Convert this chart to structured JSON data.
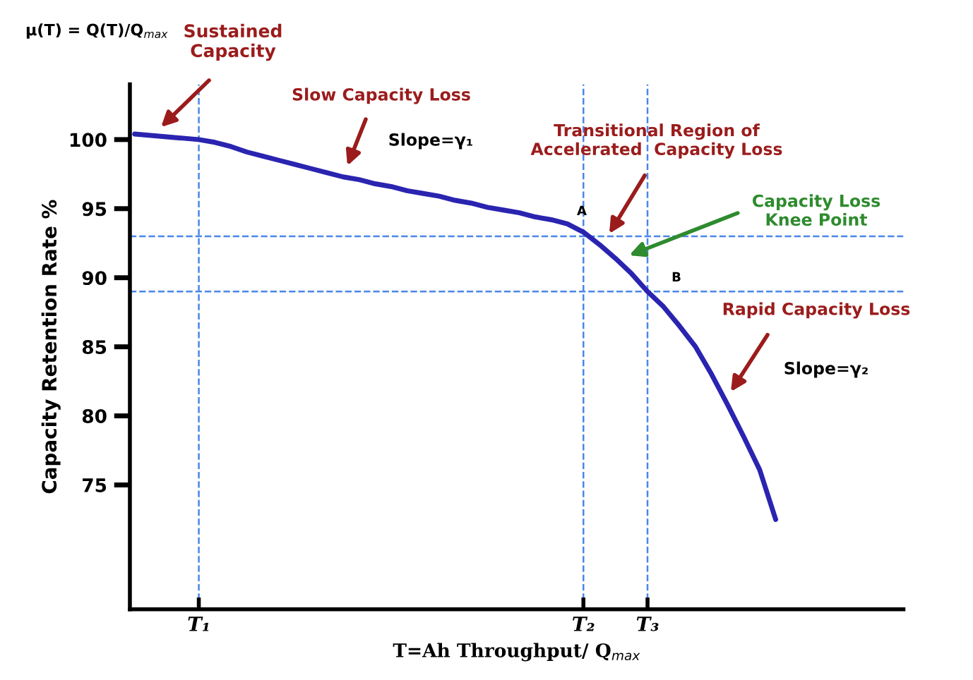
{
  "chart_data": {
    "type": "line",
    "xlabel": "T=Ah Throughput/ Q$_{max}$",
    "ylabel": "Capacity Retention Rate %",
    "categories": [
      null,
      null,
      null,
      null,
      "T₁",
      null,
      null,
      null,
      null,
      null,
      null,
      null,
      null,
      null,
      null,
      null,
      null,
      null,
      null,
      null,
      null,
      null,
      null,
      null,
      null,
      null,
      null,
      null,
      "T₂",
      null,
      null,
      null,
      "T₃",
      null,
      null,
      null,
      null,
      null,
      null,
      null,
      null
    ],
    "series": [
      {
        "color": "#2a24b0",
        "values": [
          100.4,
          100.3,
          100.2,
          100.1,
          100.0,
          99.8,
          99.5,
          99.1,
          98.8,
          98.5,
          98.2,
          97.9,
          97.6,
          97.3,
          97.1,
          96.8,
          96.6,
          96.3,
          96.1,
          95.9,
          95.6,
          95.4,
          95.1,
          94.9,
          94.7,
          94.4,
          94.2,
          93.9,
          93.3,
          92.4,
          91.4,
          90.3,
          89.0,
          87.9,
          86.5,
          85.0,
          83.0,
          80.8,
          78.5,
          76.1,
          72.5
        ]
      }
    ],
    "ylim": [
      66,
      104
    ],
    "yticks": [
      75,
      80,
      85,
      90,
      95,
      100
    ],
    "ref_lines": [
      {
        "axis": "x",
        "value": "T₁",
        "color": "#4a86e8",
        "line_style": "dashed"
      },
      {
        "axis": "x",
        "value": "T₂",
        "color": "#4a86e8",
        "line_style": "dashed"
      },
      {
        "axis": "x",
        "value": "T₃",
        "color": "#4a86e8",
        "line_style": "dashed"
      },
      {
        "axis": "y",
        "value": 93.0,
        "color": "#4a86e8",
        "line_style": "dashed"
      },
      {
        "axis": "y",
        "value": 89.0,
        "color": "#4a86e8",
        "line_style": "dashed"
      }
    ],
    "annotations": [
      "μ(T) = Q(T)/Q$_{max}$",
      "Sustained\nCapacity",
      "Slow Capacity Loss",
      "Slope=γ₁",
      "Transitional Region of\nAccelerated  Capacity Loss",
      "Capacity Loss\nKnee Point",
      "Rapid Capacity Loss",
      "Slope=γ₂",
      "A",
      "B"
    ],
    "grid": false,
    "legend": false,
    "marker": "none",
    "line_style": "solid"
  }
}
